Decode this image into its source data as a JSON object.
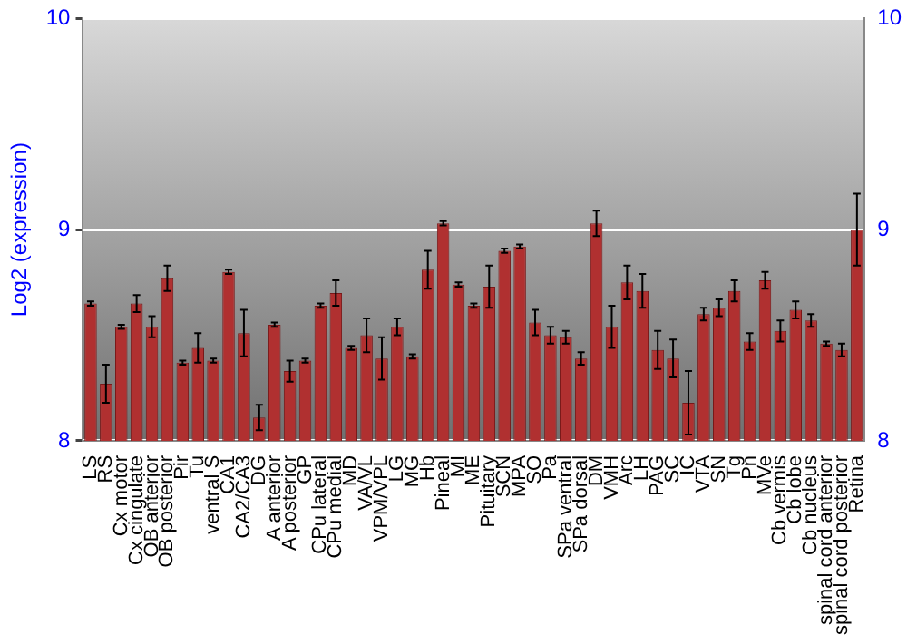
{
  "chart_data": {
    "type": "bar",
    "ylabel": "Log2 (expression)",
    "categories": [
      "LS",
      "RS",
      "Cx motor",
      "Cx cingulate",
      "OB anterior",
      "OB posterior",
      "Pir",
      "Tu",
      "ventral S",
      "CA1",
      "CA2/CA3",
      "DG",
      "A anterior",
      "A posterior",
      "GP",
      "CPu lateral",
      "CPu medial",
      "MD",
      "VA/VL",
      "VPM/VPL",
      "LG",
      "MG",
      "Hb",
      "Pineal",
      "MI",
      "ME",
      "Pituitary",
      "SCN",
      "MPA",
      "SO",
      "Pa",
      "SPa ventral",
      "SPa dorsal",
      "DM",
      "VMH",
      "Arc",
      "LH",
      "PAG",
      "SC",
      "IC",
      "VTA",
      "SN",
      "Tg",
      "Pn",
      "MVe",
      "Cb vermis",
      "Cb lobe",
      "Cb nucleus",
      "spinal cord anterior",
      "spinal cord posterior",
      "Retina"
    ],
    "values": [
      8.65,
      8.27,
      8.54,
      8.65,
      8.54,
      8.77,
      8.37,
      8.44,
      8.38,
      8.8,
      8.51,
      8.11,
      8.55,
      8.33,
      8.38,
      8.64,
      8.7,
      8.44,
      8.5,
      8.39,
      8.54,
      8.4,
      8.81,
      9.03,
      8.74,
      8.64,
      8.73,
      8.9,
      8.92,
      8.56,
      8.5,
      8.49,
      8.39,
      9.03,
      8.54,
      8.75,
      8.71,
      8.43,
      8.39,
      8.18,
      8.6,
      8.63,
      8.71,
      8.47,
      8.76,
      8.52,
      8.62,
      8.57,
      8.46,
      8.43,
      9.0
    ],
    "errors": [
      0.01,
      0.09,
      0.01,
      0.04,
      0.05,
      0.06,
      0.01,
      0.07,
      0.01,
      0.01,
      0.11,
      0.06,
      0.01,
      0.05,
      0.01,
      0.01,
      0.06,
      0.01,
      0.08,
      0.1,
      0.04,
      0.01,
      0.09,
      0.01,
      0.01,
      0.01,
      0.1,
      0.01,
      0.01,
      0.06,
      0.04,
      0.03,
      0.03,
      0.06,
      0.1,
      0.08,
      0.08,
      0.09,
      0.09,
      0.15,
      0.03,
      0.04,
      0.05,
      0.04,
      0.04,
      0.05,
      0.04,
      0.03,
      0.01,
      0.03,
      0.17
    ],
    "color": "#b03030",
    "ylim": [
      8,
      10
    ],
    "yticks": [
      8,
      9,
      10
    ],
    "y2lim": [
      8,
      10
    ],
    "y2ticks": [
      8,
      9,
      10
    ],
    "grid": "y",
    "legend": false
  }
}
